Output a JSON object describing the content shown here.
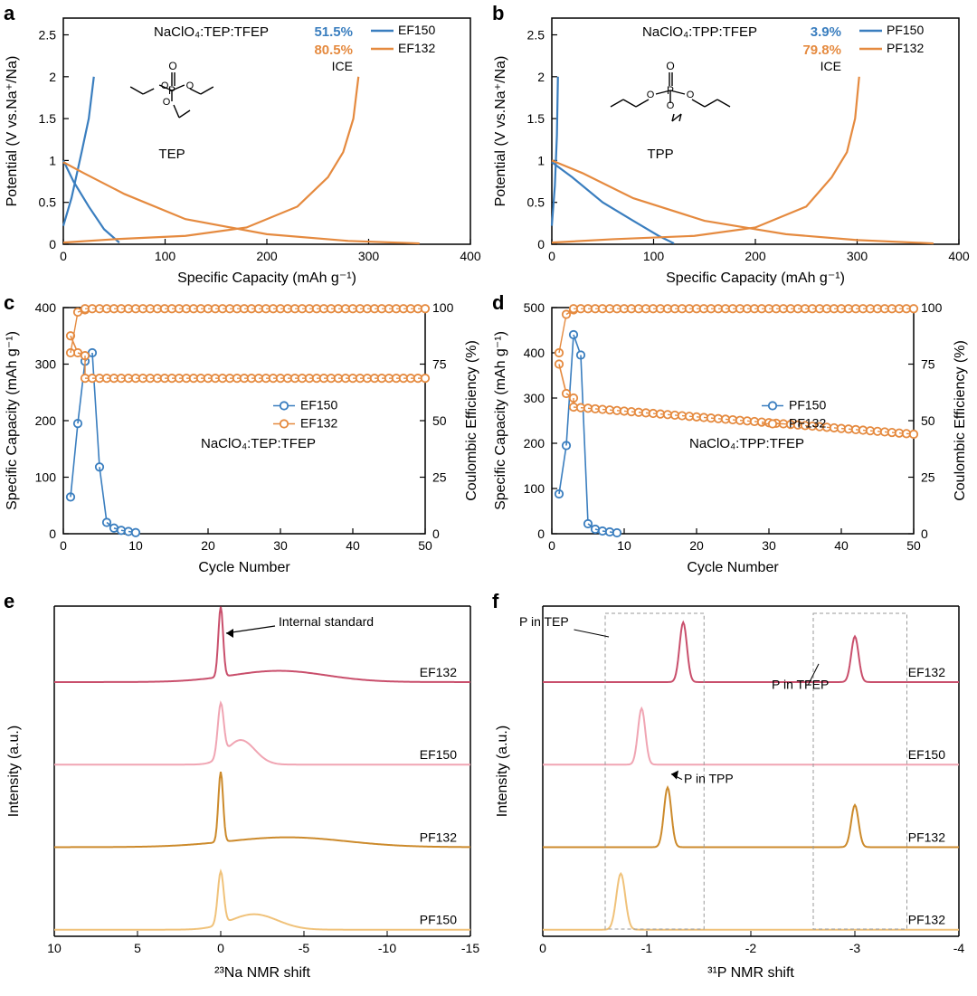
{
  "colors": {
    "blue": "#3a7ebf",
    "orange": "#e58a3f",
    "axis": "#000000",
    "text": "#000000",
    "ef132_dark": "#c94f6c",
    "ef150_light": "#f0a5b3",
    "pf132_dark": "#cc8a2b",
    "pf150_light": "#f0c27a",
    "grid": "#bfbfbf"
  },
  "fonts": {
    "panel_label_pt": 22,
    "axis_title_pt": 16,
    "tick_pt": 14,
    "legend_pt": 14,
    "annot_pt": 14
  },
  "panel_a": {
    "type": "line",
    "title_inset": "NaClO₄:TEP:TFEP",
    "xlabel": "Specific Capacity (mAh g⁻¹)",
    "ylabel": "Potential (V vs.Na⁺/Na)",
    "xlim": [
      0,
      400
    ],
    "xtick_step": 100,
    "ylim": [
      0,
      2.7
    ],
    "yticks": [
      0.0,
      0.5,
      1.0,
      1.5,
      2.0,
      2.5
    ],
    "legend": [
      {
        "label": "EF150",
        "color": "#3a7ebf"
      },
      {
        "label": "EF132",
        "color": "#e58a3f"
      }
    ],
    "ice_label": "ICE",
    "ice_values": [
      {
        "text": "51.5%",
        "color": "#3a7ebf"
      },
      {
        "text": "80.5%",
        "color": "#e58a3f"
      }
    ],
    "molecule_label": "TEP",
    "curves": {
      "EF150_discharge": {
        "color": "#3a7ebf",
        "pts": [
          [
            0,
            1.0
          ],
          [
            10,
            0.75
          ],
          [
            25,
            0.45
          ],
          [
            40,
            0.18
          ],
          [
            55,
            0.02
          ]
        ]
      },
      "EF150_charge": {
        "color": "#3a7ebf",
        "pts": [
          [
            0,
            0.22
          ],
          [
            8,
            0.55
          ],
          [
            18,
            1.1
          ],
          [
            25,
            1.5
          ],
          [
            30,
            2.0
          ]
        ]
      },
      "EF132_discharge": {
        "color": "#e58a3f",
        "pts": [
          [
            0,
            0.98
          ],
          [
            20,
            0.85
          ],
          [
            60,
            0.6
          ],
          [
            120,
            0.3
          ],
          [
            200,
            0.12
          ],
          [
            280,
            0.04
          ],
          [
            350,
            0.01
          ]
        ]
      },
      "EF132_charge": {
        "color": "#e58a3f",
        "pts": [
          [
            0,
            0.02
          ],
          [
            50,
            0.06
          ],
          [
            120,
            0.1
          ],
          [
            180,
            0.2
          ],
          [
            230,
            0.45
          ],
          [
            260,
            0.8
          ],
          [
            275,
            1.1
          ],
          [
            285,
            1.5
          ],
          [
            290,
            2.0
          ]
        ]
      }
    }
  },
  "panel_b": {
    "type": "line",
    "title_inset": "NaClO₄:TPP:TFEP",
    "xlabel": "Specific Capacity (mAh g⁻¹)",
    "ylabel": "Potential (V vs.Na⁺/Na)",
    "xlim": [
      0,
      400
    ],
    "xtick_step": 100,
    "ylim": [
      0,
      2.7
    ],
    "yticks": [
      0.0,
      0.5,
      1.0,
      1.5,
      2.0,
      2.5
    ],
    "legend": [
      {
        "label": "PF150",
        "color": "#3a7ebf"
      },
      {
        "label": "PF132",
        "color": "#e58a3f"
      }
    ],
    "ice_label": "ICE",
    "ice_values": [
      {
        "text": "3.9%",
        "color": "#3a7ebf"
      },
      {
        "text": "79.8%",
        "color": "#e58a3f"
      }
    ],
    "molecule_label": "TPP",
    "curves": {
      "PF150_discharge": {
        "color": "#3a7ebf",
        "pts": [
          [
            0,
            0.98
          ],
          [
            20,
            0.8
          ],
          [
            50,
            0.5
          ],
          [
            80,
            0.28
          ],
          [
            105,
            0.1
          ],
          [
            120,
            0.01
          ]
        ]
      },
      "PF150_charge": {
        "color": "#3a7ebf",
        "pts": [
          [
            0,
            0.22
          ],
          [
            3,
            0.7
          ],
          [
            5,
            1.3
          ],
          [
            6,
            2.0
          ]
        ]
      },
      "PF132_discharge": {
        "color": "#e58a3f",
        "pts": [
          [
            0,
            1.0
          ],
          [
            30,
            0.85
          ],
          [
            80,
            0.55
          ],
          [
            150,
            0.28
          ],
          [
            230,
            0.12
          ],
          [
            300,
            0.05
          ],
          [
            375,
            0.01
          ]
        ]
      },
      "PF132_charge": {
        "color": "#e58a3f",
        "pts": [
          [
            0,
            0.02
          ],
          [
            60,
            0.06
          ],
          [
            140,
            0.1
          ],
          [
            200,
            0.2
          ],
          [
            250,
            0.45
          ],
          [
            275,
            0.8
          ],
          [
            290,
            1.1
          ],
          [
            298,
            1.5
          ],
          [
            302,
            2.0
          ]
        ]
      }
    }
  },
  "panel_c": {
    "type": "scatter-line",
    "title_inset": "NaClO₄:TEP:TFEP",
    "xlabel": "Cycle Number",
    "ylabel_left": "Specific Capacity (mAh g⁻¹)",
    "ylabel_right": "Coulombic Efficiency (%)",
    "xlim": [
      0,
      50
    ],
    "xtick_step": 10,
    "ylim_left": [
      0,
      400
    ],
    "ytick_left_step": 100,
    "ylim_right": [
      0,
      100
    ],
    "ytick_right_step": 25,
    "legend": [
      {
        "label": "EF150",
        "color": "#3a7ebf",
        "marker": "open-circle"
      },
      {
        "label": "EF132",
        "color": "#e58a3f",
        "marker": "open-circle"
      }
    ],
    "data": {
      "EF150_cap": [
        [
          1,
          65
        ],
        [
          2,
          195
        ],
        [
          3,
          305
        ],
        [
          4,
          320
        ],
        [
          5,
          118
        ],
        [
          6,
          20
        ],
        [
          7,
          10
        ],
        [
          8,
          6
        ],
        [
          9,
          4
        ],
        [
          10,
          2
        ]
      ],
      "EF132_cap_first3": [
        [
          1,
          350
        ],
        [
          2,
          320
        ],
        [
          3,
          315
        ]
      ],
      "EF132_cap_plateau": {
        "from": 3,
        "to": 50,
        "val": 275
      },
      "EF132_CE_first3": [
        [
          1,
          80
        ],
        [
          2,
          98
        ],
        [
          3,
          99
        ]
      ],
      "EF132_CE_plateau": {
        "from": 3,
        "to": 50,
        "val": 99.5
      }
    }
  },
  "panel_d": {
    "type": "scatter-line",
    "title_inset": "NaClO₄:TPP:TFEP",
    "xlabel": "Cycle Number",
    "ylabel_left": "Specific Capacity (mAh g⁻¹)",
    "ylabel_right": "Coulombic Efficiency (%)",
    "xlim": [
      0,
      50
    ],
    "xtick_step": 10,
    "ylim_left": [
      0,
      500
    ],
    "ytick_left_step": 100,
    "ylim_right": [
      0,
      100
    ],
    "ytick_right_step": 25,
    "legend": [
      {
        "label": "PF150",
        "color": "#3a7ebf",
        "marker": "open-circle"
      },
      {
        "label": "PF132",
        "color": "#e58a3f",
        "marker": "open-circle"
      }
    ],
    "data": {
      "PF150_cap": [
        [
          1,
          88
        ],
        [
          2,
          195
        ],
        [
          3,
          440
        ],
        [
          4,
          395
        ],
        [
          5,
          22
        ],
        [
          6,
          10
        ],
        [
          7,
          6
        ],
        [
          8,
          4
        ],
        [
          9,
          2
        ]
      ],
      "PF132_cap_first3": [
        [
          1,
          375
        ],
        [
          2,
          310
        ],
        [
          3,
          300
        ]
      ],
      "PF132_cap_sloped": {
        "from": 3,
        "to": 50,
        "from_val": 280,
        "to_val": 220
      },
      "PF132_CE_first3": [
        [
          1,
          80
        ],
        [
          2,
          97
        ],
        [
          3,
          99
        ]
      ],
      "PF132_CE_plateau": {
        "from": 3,
        "to": 50,
        "val": 99.5
      }
    }
  },
  "panel_e": {
    "type": "stacked-spectra",
    "xlabel": "²³Na NMR shift",
    "ylabel": "Intensity (a.u.)",
    "x_reversed": true,
    "xlim": [
      10,
      -15
    ],
    "xticks": [
      10,
      5,
      0,
      -5,
      -10,
      -15
    ],
    "internal_std_label": "Internal standard",
    "internal_std_pos": 0,
    "traces": [
      {
        "label": "EF132",
        "color": "#c94f6c",
        "offset": 3,
        "peaks": [
          {
            "x": 0,
            "h": 1.0,
            "w": 0.2
          }
        ],
        "broad": {
          "x": -3.5,
          "h": 0.16,
          "w": 4
        }
      },
      {
        "label": "EF150",
        "color": "#f0a5b3",
        "offset": 2,
        "peaks": [
          {
            "x": 0,
            "h": 0.75,
            "w": 0.25
          },
          {
            "x": -1.2,
            "h": 0.35,
            "w": 1.2
          }
        ]
      },
      {
        "label": "PF132",
        "color": "#cc8a2b",
        "offset": 1,
        "peaks": [
          {
            "x": 0,
            "h": 1.0,
            "w": 0.2
          }
        ],
        "broad": {
          "x": -4,
          "h": 0.14,
          "w": 5
        }
      },
      {
        "label": "PF150",
        "color": "#f0c27a",
        "offset": 0,
        "peaks": [
          {
            "x": 0,
            "h": 0.75,
            "w": 0.25
          },
          {
            "x": -2.0,
            "h": 0.22,
            "w": 2.0
          }
        ]
      }
    ]
  },
  "panel_f": {
    "type": "stacked-spectra",
    "xlabel": "³¹P NMR shift",
    "ylabel": "Intensity (a.u.)",
    "x_reversed": true,
    "xlim": [
      0,
      -4
    ],
    "xticks": [
      0,
      -1,
      -2,
      -3,
      -4
    ],
    "annotations": [
      {
        "text": "P in TEP",
        "box": [
          -0.6,
          -1.55,
          "top"
        ]
      },
      {
        "text": "P in TFEP",
        "box": [
          -2.6,
          -3.5,
          "top"
        ]
      },
      {
        "text": "P in TPP",
        "arrow_to": [
          -1.2,
          1
        ]
      }
    ],
    "traces": [
      {
        "label": "EF132",
        "color": "#c94f6c",
        "offset": 3,
        "peaks": [
          {
            "x": -1.35,
            "h": 0.85,
            "w": 0.05
          },
          {
            "x": -3.0,
            "h": 0.65,
            "w": 0.05
          }
        ]
      },
      {
        "label": "EF150",
        "color": "#f0a5b3",
        "offset": 2,
        "peaks": [
          {
            "x": -0.95,
            "h": 0.8,
            "w": 0.05
          }
        ]
      },
      {
        "label": "PF132",
        "color": "#cc8a2b",
        "offset": 1,
        "peaks": [
          {
            "x": -1.2,
            "h": 0.85,
            "w": 0.05
          },
          {
            "x": -3.0,
            "h": 0.6,
            "w": 0.05
          }
        ]
      },
      {
        "label": "PF132",
        "color": "#f0c27a",
        "offset": 0,
        "peaks": [
          {
            "x": -0.75,
            "h": 0.8,
            "w": 0.06
          }
        ]
      }
    ],
    "bottom_label_override": "PF132"
  }
}
